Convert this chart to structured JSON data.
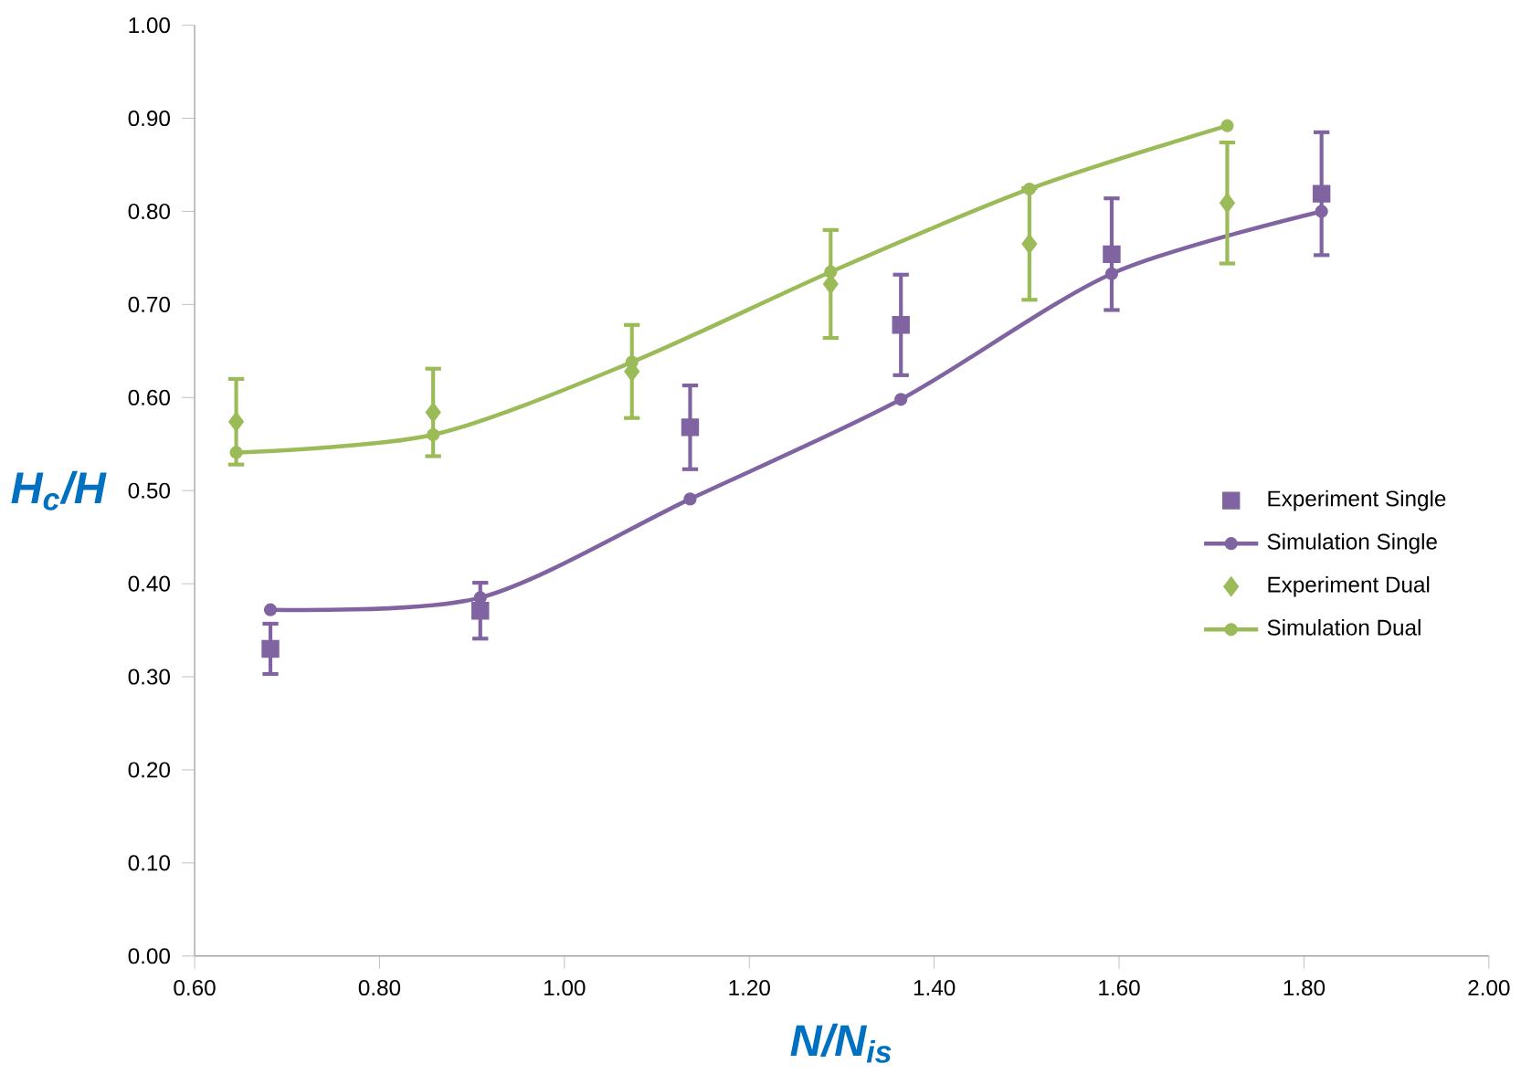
{
  "chart_data": {
    "type": "line",
    "xlabel": "N/N$_{is}$",
    "ylabel": "H$_{c}$/H",
    "xlim": [
      0.6,
      2.0
    ],
    "ylim": [
      0.0,
      1.0
    ],
    "xticks": [
      {
        "value": 0.6,
        "label": "0.60"
      },
      {
        "value": 0.8,
        "label": "0.80"
      },
      {
        "value": 1.0,
        "label": "1.00"
      },
      {
        "value": 1.2,
        "label": "1.20"
      },
      {
        "value": 1.4,
        "label": "1.40"
      },
      {
        "value": 1.6,
        "label": "1.60"
      },
      {
        "value": 1.8,
        "label": "1.80"
      },
      {
        "value": 2.0,
        "label": "2.00"
      }
    ],
    "yticks": [
      {
        "value": 0.0,
        "label": "0.00"
      },
      {
        "value": 0.1,
        "label": "0.10"
      },
      {
        "value": 0.2,
        "label": "0.20"
      },
      {
        "value": 0.3,
        "label": "0.30"
      },
      {
        "value": 0.4,
        "label": "0.40"
      },
      {
        "value": 0.5,
        "label": "0.50"
      },
      {
        "value": 0.6,
        "label": "0.60"
      },
      {
        "value": 0.7,
        "label": "0.70"
      },
      {
        "value": 0.8,
        "label": "0.80"
      },
      {
        "value": 0.9,
        "label": "0.90"
      },
      {
        "value": 1.0,
        "label": "1.00"
      }
    ],
    "legend": "right",
    "grid": false,
    "series": [
      {
        "name": "Experiment Single",
        "type": "scatter",
        "marker": "square",
        "color": "#8064a2",
        "x": [
          0.682,
          0.909,
          1.136,
          1.364,
          1.592,
          1.819
        ],
        "values": [
          0.33,
          0.371,
          0.568,
          0.678,
          0.754,
          0.819
        ],
        "errors": [
          0.027,
          0.03,
          0.045,
          0.054,
          0.06,
          0.066
        ]
      },
      {
        "name": "Simulation Single",
        "type": "line",
        "marker": "circle",
        "color": "#8064a2",
        "x": [
          0.682,
          0.909,
          1.136,
          1.364,
          1.592,
          1.819
        ],
        "values": [
          0.372,
          0.385,
          0.491,
          0.598,
          0.733,
          0.8
        ]
      },
      {
        "name": "Experiment Dual",
        "type": "scatter",
        "marker": "diamond",
        "color": "#9bbb59",
        "x": [
          0.645,
          0.858,
          1.073,
          1.288,
          1.503,
          1.717
        ],
        "values": [
          0.574,
          0.584,
          0.628,
          0.722,
          0.765,
          0.809
        ],
        "errors": [
          0.046,
          0.047,
          0.05,
          0.058,
          0.06,
          0.065
        ]
      },
      {
        "name": "Simulation Dual",
        "type": "line",
        "marker": "circle",
        "color": "#9bbb59",
        "x": [
          0.645,
          0.858,
          1.073,
          1.288,
          1.503,
          1.717
        ],
        "values": [
          0.541,
          0.56,
          0.638,
          0.735,
          0.824,
          0.892
        ]
      }
    ]
  }
}
